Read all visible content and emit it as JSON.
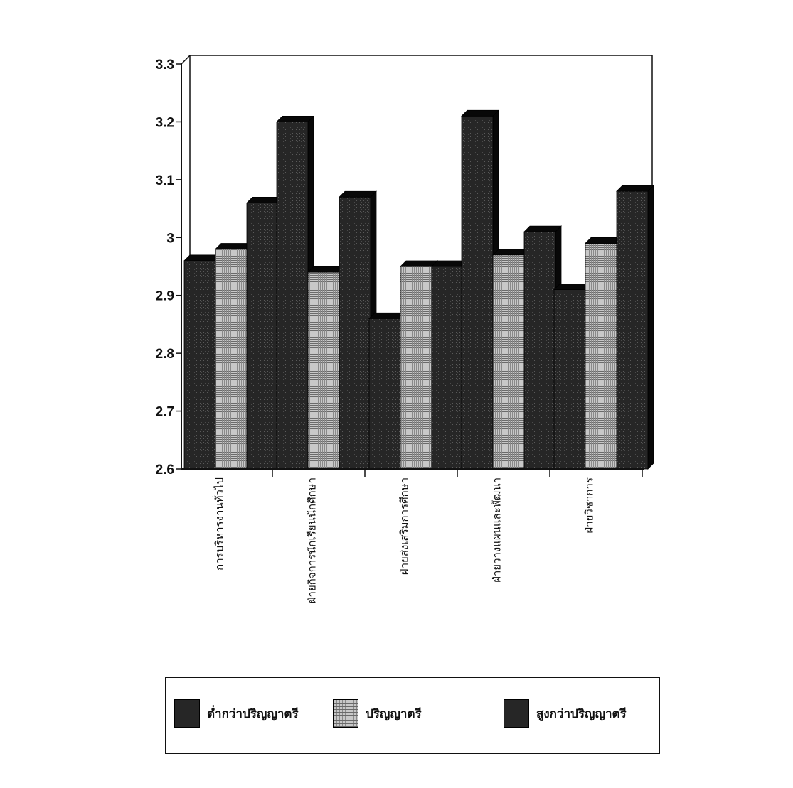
{
  "colors": {
    "dark_bar": "#262626",
    "dark_top": "#080808",
    "light_bar": "#bdbdbd",
    "axis": "#111111"
  },
  "chart_data": {
    "type": "bar",
    "categories": [
      "การบริหารงานทั่วไป",
      "ฝ่ายกิจการนักเรียนนักศึกษา",
      "ฝ่ายส่งเสริมการศึกษา",
      "ฝ่ายวางแผนและพัฒนา",
      "ฝ่ายวิชาการ"
    ],
    "series": [
      {
        "name": "ต่ำกว่าปริญญาตรี",
        "values": [
          2.96,
          3.2,
          2.86,
          3.21,
          2.91
        ]
      },
      {
        "name": "ปริญญาตรี",
        "values": [
          2.98,
          2.94,
          2.95,
          2.97,
          2.99
        ]
      },
      {
        "name": "สูงกว่าปริญญาตรี",
        "values": [
          3.06,
          3.07,
          2.95,
          3.01,
          3.08
        ]
      }
    ],
    "ylim": [
      2.6,
      3.3
    ],
    "yticks": [
      "2.6",
      "2.7",
      "2.8",
      "2.9",
      "3",
      "3.1",
      "3.2",
      "3.3"
    ],
    "legend_position": "bottom",
    "grid": false
  }
}
